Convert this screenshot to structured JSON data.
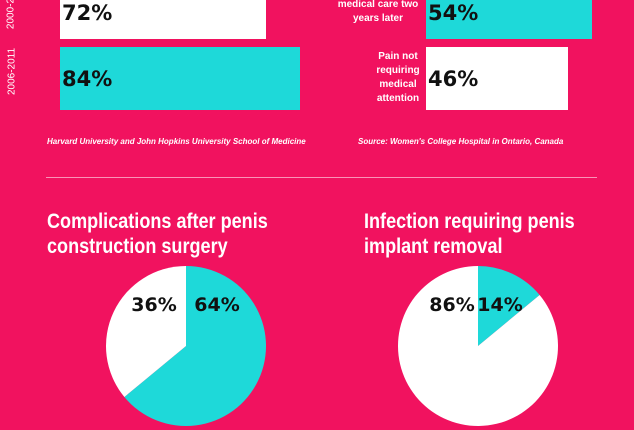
{
  "chart_data": [
    {
      "type": "bar",
      "orientation": "horizontal",
      "categories": [
        "2000-2",
        "2006-2011"
      ],
      "values": [
        72,
        84
      ],
      "value_labels": [
        "72%",
        "84%"
      ],
      "bar_colors": [
        "#ffffff",
        "#1ed9d9"
      ],
      "source": "Harvard University and John Hopkins University School of Medicine"
    },
    {
      "type": "bar",
      "orientation": "horizontal",
      "categories": [
        "medical care two years later",
        "Pain not requiring medical attention"
      ],
      "category_lines": [
        [
          "medical care two",
          "years later"
        ],
        [
          "Pain not",
          "requiring",
          "medical",
          "attention"
        ]
      ],
      "values": [
        54,
        46
      ],
      "value_labels": [
        "54%",
        "46%"
      ],
      "bar_colors": [
        "#1ed9d9",
        "#ffffff"
      ],
      "source": "Source: Women's College Hospital in Ontario, Canada"
    },
    {
      "type": "pie",
      "title": "Complications after penis construction surgery",
      "title_lines": [
        "Complications after penis",
        "construction surgery"
      ],
      "slices": [
        {
          "label": "64%",
          "value": 64,
          "color": "#1ed9d9"
        },
        {
          "label": "36%",
          "value": 36,
          "color": "#ffffff"
        }
      ]
    },
    {
      "type": "pie",
      "title": "Infection requiring penis implant removal",
      "title_lines": [
        "Infection requiring penis",
        "implant removal"
      ],
      "slices": [
        {
          "label": "14%",
          "value": 14,
          "color": "#1ed9d9"
        },
        {
          "label": "86%",
          "value": 86,
          "color": "#ffffff"
        }
      ]
    }
  ],
  "colors": {
    "background": "#f1125f",
    "accent": "#1ed9d9",
    "light": "#ffffff"
  }
}
